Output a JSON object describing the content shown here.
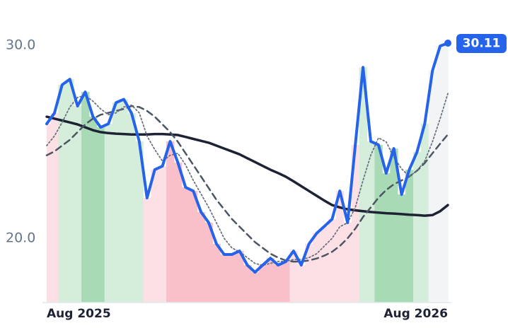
{
  "chart_data": {
    "type": "line",
    "categories": [
      "Aug 2025",
      null,
      null,
      null,
      null,
      null,
      null,
      null,
      null,
      null,
      null,
      null,
      null,
      null,
      null,
      null,
      null,
      null,
      null,
      null,
      null,
      null,
      null,
      null,
      null,
      null,
      null,
      null,
      null,
      null,
      null,
      null,
      null,
      null,
      null,
      null,
      null,
      null,
      null,
      null,
      null,
      null,
      null,
      null,
      null,
      null,
      null,
      null,
      null,
      null,
      null,
      null,
      "Aug 2026"
    ],
    "series": [
      {
        "color": "#2563eb",
        "style": "solid",
        "width": 4,
        "values": [
          25.93,
          26.48,
          27.95,
          28.24,
          26.85,
          27.58,
          26.3,
          25.75,
          25.93,
          27.03,
          27.2,
          26.48,
          25.02,
          22.09,
          23.55,
          23.74,
          25.02,
          23.92,
          22.64,
          22.45,
          21.36,
          20.81,
          19.71,
          19.16,
          19.16,
          19.34,
          18.61,
          18.24,
          18.61,
          18.97,
          18.61,
          18.79,
          19.34,
          18.61,
          19.71,
          20.26,
          20.62,
          20.99,
          22.45,
          20.81,
          24.84,
          28.86,
          25.02,
          24.84,
          23.37,
          24.65,
          22.27,
          23.55,
          24.47,
          25.93,
          28.68,
          29.96,
          30.11
        ]
      },
      {
        "color": "#6b7280",
        "style": "dotted",
        "width": 1.8,
        "values": [
          24.8,
          25.3,
          26.0,
          26.8,
          27.3,
          27.4,
          27.1,
          26.7,
          26.4,
          26.5,
          26.8,
          26.9,
          26.5,
          25.3,
          24.6,
          24.0,
          24.3,
          24.4,
          23.8,
          23.0,
          22.3,
          21.6,
          20.8,
          20.0,
          19.5,
          19.3,
          19.0,
          18.7,
          18.6,
          18.7,
          18.8,
          18.8,
          18.9,
          18.9,
          19.0,
          19.2,
          19.6,
          20.0,
          20.6,
          20.8,
          21.6,
          23.0,
          24.3,
          25.2,
          25.0,
          24.2,
          23.6,
          23.2,
          23.5,
          24.0,
          25.0,
          26.2,
          27.5
        ]
      },
      {
        "color": "#4b5563",
        "style": "dashed",
        "width": 2.5,
        "values": [
          24.3,
          24.5,
          24.8,
          25.1,
          25.5,
          25.9,
          26.2,
          26.4,
          26.5,
          26.6,
          26.7,
          26.85,
          26.8,
          26.6,
          26.3,
          25.9,
          25.5,
          25.0,
          24.4,
          23.8,
          23.2,
          22.6,
          22.0,
          21.5,
          21.0,
          20.6,
          20.2,
          19.8,
          19.5,
          19.2,
          19.0,
          18.85,
          18.79,
          18.8,
          18.85,
          18.95,
          19.1,
          19.3,
          19.6,
          20.0,
          20.5,
          21.1,
          21.6,
          22.1,
          22.5,
          22.8,
          23.0,
          23.2,
          23.5,
          23.9,
          24.4,
          24.9,
          25.38
        ]
      },
      {
        "color": "#1e2235",
        "style": "solid",
        "width": 3.5,
        "values": [
          26.3,
          26.2,
          26.1,
          26.0,
          25.9,
          25.75,
          25.6,
          25.5,
          25.45,
          25.42,
          25.4,
          25.38,
          25.38,
          25.38,
          25.4,
          25.4,
          25.38,
          25.35,
          25.25,
          25.15,
          25.05,
          24.95,
          24.8,
          24.65,
          24.5,
          24.35,
          24.15,
          23.95,
          23.75,
          23.55,
          23.38,
          23.19,
          22.95,
          22.7,
          22.45,
          22.2,
          21.95,
          21.72,
          21.6,
          21.5,
          21.45,
          21.4,
          21.36,
          21.33,
          21.3,
          21.28,
          21.25,
          21.22,
          21.2,
          21.17,
          21.2,
          21.4,
          21.72
        ]
      }
    ],
    "shade_colors": [
      "#fde0e5",
      "#fde0e5",
      "#d5eedb",
      "#d5eedb",
      "#d5eedb",
      "#a8dbb5",
      "#a8dbb5",
      "#a8dbb5",
      "#d5eedb",
      "#d5eedb",
      "#d5eedb",
      "#d5eedb",
      "#d5eedb",
      "#fde0e5",
      "#fde0e5",
      "#fde0e5",
      "#f9c0ca",
      "#f9c0ca",
      "#f9c0ca",
      "#f9c0ca",
      "#f9c0ca",
      "#f9c0ca",
      "#f9c0ca",
      "#f9c0ca",
      "#f9c0ca",
      "#f9c0ca",
      "#f9c0ca",
      "#f9c0ca",
      "#f9c0ca",
      "#f9c0ca",
      "#f9c0ca",
      "#f9c0ca",
      "#fde0e5",
      "#fde0e5",
      "#fde0e5",
      "#fde0e5",
      "#fde0e5",
      "#fde0e5",
      "#fde0e5",
      "#fde0e5",
      "#fde0e5",
      "#d5eedb",
      "#d5eedb",
      "#a8dbb5",
      "#a8dbb5",
      "#a8dbb5",
      "#a8dbb5",
      "#a8dbb5",
      "#d5eedb",
      "#d5eedb",
      "#f3f4f6",
      "#f3f4f6",
      "#f3f4f6"
    ],
    "ylim": [
      16.67,
      30.88
    ],
    "yticks": [
      {
        "value": 20,
        "label": "20.0"
      },
      {
        "value": 30,
        "label": "30.0"
      }
    ],
    "grid": false
  }
}
